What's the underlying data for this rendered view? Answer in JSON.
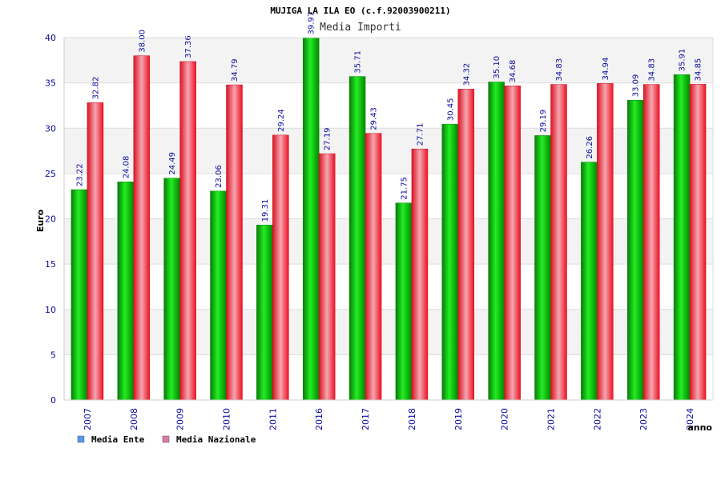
{
  "chart_data": {
    "type": "bar",
    "title": "MUJIGA LA ILA EO (c.f.92003900211)",
    "subtitle": "Media Importi",
    "xlabel": "anno",
    "ylabel": "Euro",
    "ylim": [
      0,
      40
    ],
    "yticks": [
      "0",
      "5",
      "10",
      "15",
      "20",
      "25",
      "30",
      "35",
      "40"
    ],
    "categories": [
      "2007",
      "2008",
      "2009",
      "2010",
      "2011",
      "2016",
      "2017",
      "2018",
      "2019",
      "2020",
      "2021",
      "2022",
      "2023",
      "2024"
    ],
    "series": [
      {
        "name": "Media Ente",
        "color": "#00cc00",
        "values": [
          23.22,
          24.08,
          24.49,
          23.06,
          19.31,
          39.97,
          35.71,
          21.75,
          30.45,
          35.1,
          29.19,
          26.26,
          33.09,
          35.91
        ],
        "labels": [
          "23.22",
          "24.08",
          "24.49",
          "23.06",
          "19.31",
          "39.97",
          "35.71",
          "21.75",
          "30.45",
          "35.10",
          "29.19",
          "26.26",
          "33.09",
          "35.91"
        ]
      },
      {
        "name": "Media Nazionale",
        "color": "#ee2233",
        "values": [
          32.82,
          38.0,
          37.36,
          34.79,
          29.24,
          27.19,
          29.43,
          27.71,
          34.32,
          34.68,
          34.83,
          34.94,
          34.83,
          34.85
        ],
        "labels": [
          "32.82",
          "38.00",
          "37.36",
          "34.79",
          "29.24",
          "27.19",
          "29.43",
          "27.71",
          "34.32",
          "34.68",
          "34.83",
          "34.94",
          "34.83",
          "34.85"
        ]
      }
    ],
    "legend": [
      {
        "name": "Media Ente",
        "swatch_color": "#5599ee"
      },
      {
        "name": "Media Nazionale",
        "swatch_color": "#dd77aa"
      }
    ],
    "legend_position": "bottom-left",
    "grid": true
  }
}
